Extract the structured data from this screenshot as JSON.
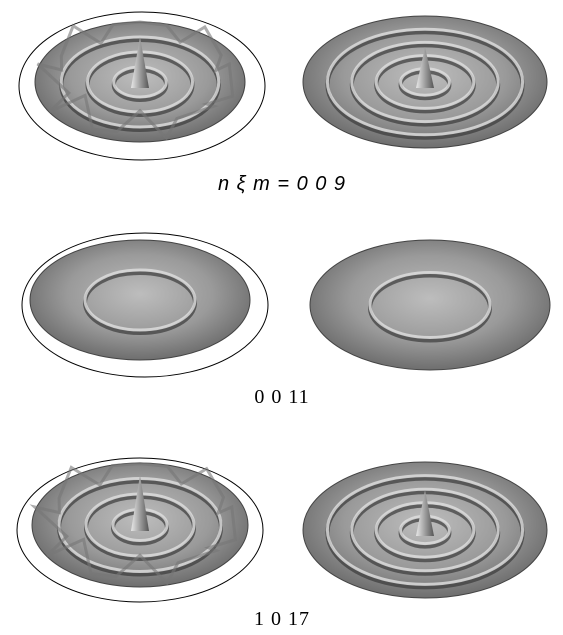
{
  "panels": [
    {
      "caption": "n ξ m = 0 0 9"
    },
    {
      "caption": "0 0 11"
    },
    {
      "caption": "1 0 17"
    }
  ]
}
